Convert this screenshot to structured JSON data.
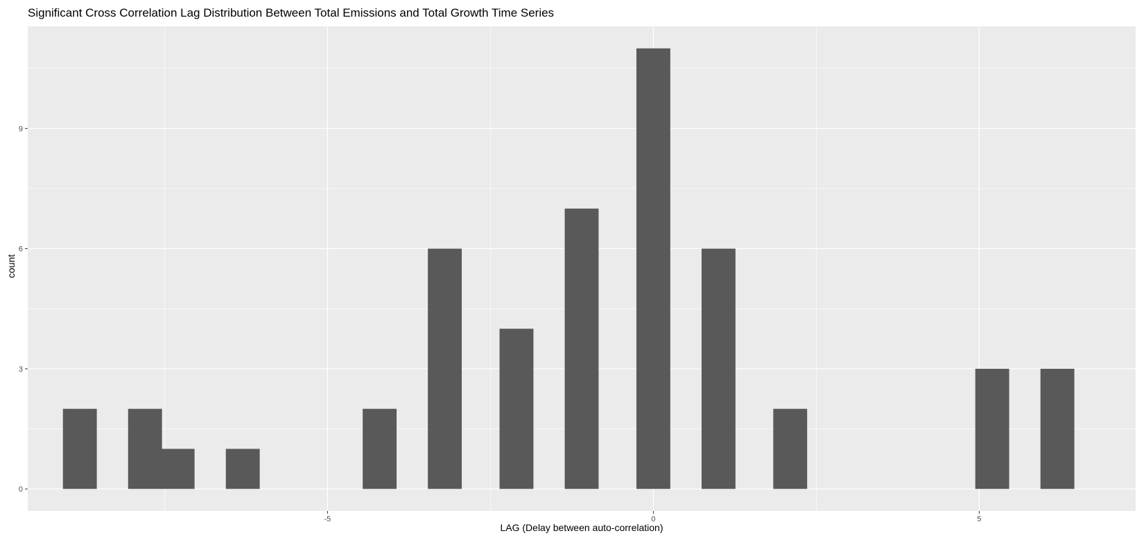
{
  "chart_data": {
    "type": "bar",
    "title": "Significant Cross Correlation Lag Distribution Between Total Emissions and Total Growth Time Series",
    "xlabel": "LAG (Delay between auto-correlation)",
    "ylabel": "count",
    "x": [
      -8.8,
      -7.8,
      -7.3,
      -6.3,
      -4.2,
      -3.2,
      -2.1,
      -1.1,
      0,
      1.0,
      2.1,
      5.2,
      6.2
    ],
    "values": [
      2,
      2,
      1,
      1,
      2,
      6,
      4,
      7,
      11,
      6,
      2,
      3,
      3
    ],
    "bin_width": 0.52,
    "xlim": [
      -9.6,
      7.4
    ],
    "ylim": [
      -0.55,
      11.55
    ],
    "x_ticks": [
      -5,
      5
    ],
    "x_tick_labels": [
      "-5",
      "5"
    ],
    "x_tick_zero_label": "0",
    "y_ticks": [
      0,
      3,
      6,
      9
    ],
    "y_tick_labels": [
      "0",
      "3",
      "6",
      "9"
    ],
    "grid": true,
    "colors": {
      "panel": "#ebebeb",
      "grid": "#ffffff",
      "bar": "#595959"
    }
  }
}
